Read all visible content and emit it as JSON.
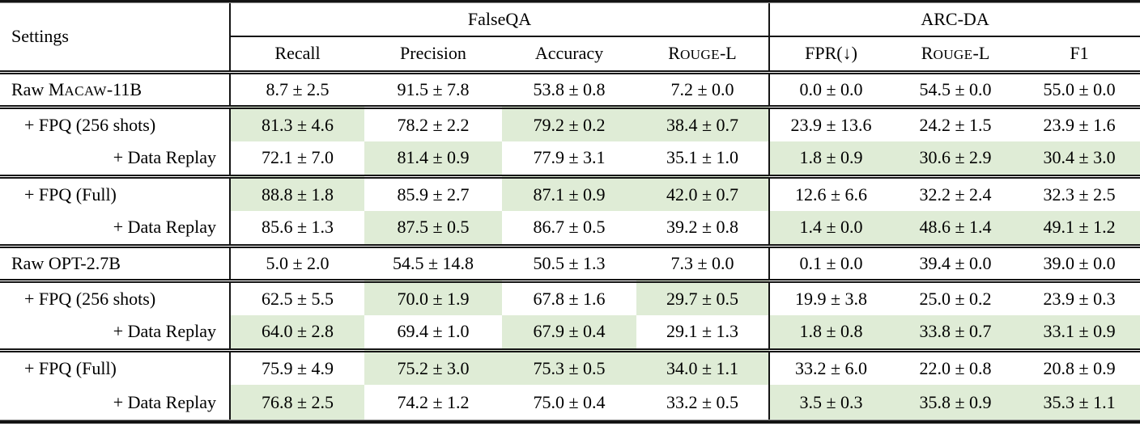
{
  "colors": {
    "highlight": "#dfecd6",
    "rule": "#141414",
    "text": "#000000",
    "background": "#ffffff"
  },
  "table": {
    "settings_header": "Settings",
    "groups": [
      {
        "label": "FalseQA"
      },
      {
        "label": "ARC-DA"
      }
    ],
    "columns": [
      {
        "label": "Recall"
      },
      {
        "label": "Precision"
      },
      {
        "label": "Accuracy"
      },
      {
        "pre": "R",
        "sc": "ouge",
        "post": "-L"
      },
      {
        "label": "FPR(↓)"
      },
      {
        "pre": "R",
        "sc": "ouge",
        "post": "-L"
      },
      {
        "label": "F1"
      }
    ],
    "rows": [
      {
        "label": {
          "parts": [
            {
              "t": "Raw M"
            },
            {
              "t": "acaw",
              "sc": true
            },
            {
              "t": "-11B"
            }
          ],
          "align": "left",
          "indent": false
        },
        "cells": [
          {
            "v": "8.7 ± 2.5"
          },
          {
            "v": "91.5 ± 7.8"
          },
          {
            "v": "53.8 ± 0.8"
          },
          {
            "v": "7.2 ± 0.0"
          },
          {
            "v": "0.0 ± 0.0"
          },
          {
            "v": "54.5 ± 0.0"
          },
          {
            "v": "55.0 ± 0.0"
          }
        ],
        "rule_after": true
      },
      {
        "label": {
          "parts": [
            {
              "t": "+ FPQ (256 shots)"
            }
          ],
          "align": "left",
          "indent": true
        },
        "cells": [
          {
            "v": "81.3 ± 4.6",
            "h": true
          },
          {
            "v": "78.2 ± 2.2"
          },
          {
            "v": "79.2 ± 0.2",
            "h": true
          },
          {
            "v": "38.4 ± 0.7",
            "h": true
          },
          {
            "v": "23.9 ± 13.6"
          },
          {
            "v": "24.2 ± 1.5"
          },
          {
            "v": "23.9 ± 1.6"
          }
        ],
        "rule_after": false
      },
      {
        "label": {
          "parts": [
            {
              "t": "+ Data Replay"
            }
          ],
          "align": "right",
          "indent": false
        },
        "cells": [
          {
            "v": "72.1 ± 7.0"
          },
          {
            "v": "81.4 ± 0.9",
            "h": true
          },
          {
            "v": "77.9 ± 3.1"
          },
          {
            "v": "35.1 ± 1.0"
          },
          {
            "v": "1.8 ± 0.9",
            "h": true
          },
          {
            "v": "30.6 ± 2.9",
            "h": true
          },
          {
            "v": "30.4 ± 3.0",
            "h": true
          }
        ],
        "rule_after": true
      },
      {
        "label": {
          "parts": [
            {
              "t": "+ FPQ (Full)"
            }
          ],
          "align": "left",
          "indent": true
        },
        "cells": [
          {
            "v": "88.8 ± 1.8",
            "h": true
          },
          {
            "v": "85.9 ± 2.7"
          },
          {
            "v": "87.1 ± 0.9",
            "h": true
          },
          {
            "v": "42.0 ± 0.7",
            "h": true
          },
          {
            "v": "12.6 ± 6.6"
          },
          {
            "v": "32.2 ± 2.4"
          },
          {
            "v": "32.3 ± 2.5"
          }
        ],
        "rule_after": false
      },
      {
        "label": {
          "parts": [
            {
              "t": "+ Data Replay"
            }
          ],
          "align": "right",
          "indent": false
        },
        "cells": [
          {
            "v": "85.6 ± 1.3"
          },
          {
            "v": "87.5 ± 0.5",
            "h": true
          },
          {
            "v": "86.7 ± 0.5"
          },
          {
            "v": "39.2 ± 0.8"
          },
          {
            "v": "1.4 ± 0.0",
            "h": true
          },
          {
            "v": "48.6 ± 1.4",
            "h": true
          },
          {
            "v": "49.1 ± 1.2",
            "h": true
          }
        ],
        "rule_after": true
      },
      {
        "label": {
          "parts": [
            {
              "t": "Raw OPT-2.7B"
            }
          ],
          "align": "left",
          "indent": false
        },
        "cells": [
          {
            "v": "5.0 ± 2.0"
          },
          {
            "v": "54.5 ± 14.8"
          },
          {
            "v": "50.5 ± 1.3"
          },
          {
            "v": "7.3 ± 0.0"
          },
          {
            "v": "0.1 ± 0.0"
          },
          {
            "v": "39.4 ± 0.0"
          },
          {
            "v": "39.0 ± 0.0"
          }
        ],
        "rule_after": true
      },
      {
        "label": {
          "parts": [
            {
              "t": "+ FPQ (256 shots)"
            }
          ],
          "align": "left",
          "indent": true
        },
        "cells": [
          {
            "v": "62.5 ± 5.5"
          },
          {
            "v": "70.0 ± 1.9",
            "h": true
          },
          {
            "v": "67.8 ± 1.6"
          },
          {
            "v": "29.7 ± 0.5",
            "h": true
          },
          {
            "v": "19.9 ± 3.8"
          },
          {
            "v": "25.0 ± 0.2"
          },
          {
            "v": "23.9 ± 0.3"
          }
        ],
        "rule_after": false
      },
      {
        "label": {
          "parts": [
            {
              "t": "+ Data Replay"
            }
          ],
          "align": "right",
          "indent": false
        },
        "cells": [
          {
            "v": "64.0 ± 2.8",
            "h": true
          },
          {
            "v": "69.4 ± 1.0"
          },
          {
            "v": "67.9 ± 0.4",
            "h": true
          },
          {
            "v": "29.1 ± 1.3"
          },
          {
            "v": "1.8 ± 0.8",
            "h": true
          },
          {
            "v": "33.8 ± 0.7",
            "h": true
          },
          {
            "v": "33.1 ± 0.9",
            "h": true
          }
        ],
        "rule_after": true
      },
      {
        "label": {
          "parts": [
            {
              "t": "+ FPQ (Full)"
            }
          ],
          "align": "left",
          "indent": true
        },
        "cells": [
          {
            "v": "75.9 ± 4.9"
          },
          {
            "v": "75.2 ± 3.0",
            "h": true
          },
          {
            "v": "75.3 ± 0.5",
            "h": true
          },
          {
            "v": "34.0 ± 1.1",
            "h": true
          },
          {
            "v": "33.2 ± 6.0"
          },
          {
            "v": "22.0 ± 0.8"
          },
          {
            "v": "20.8 ± 0.9"
          }
        ],
        "rule_after": false
      },
      {
        "label": {
          "parts": [
            {
              "t": "+ Data Replay"
            }
          ],
          "align": "right",
          "indent": false
        },
        "cells": [
          {
            "v": "76.8 ± 2.5",
            "h": true
          },
          {
            "v": "74.2 ± 1.2"
          },
          {
            "v": "75.0 ± 0.4"
          },
          {
            "v": "33.2 ± 0.5"
          },
          {
            "v": "3.5 ± 0.3",
            "h": true
          },
          {
            "v": "35.8 ± 0.9",
            "h": true
          },
          {
            "v": "35.3 ± 1.1",
            "h": true
          }
        ],
        "rule_after": false
      }
    ]
  }
}
